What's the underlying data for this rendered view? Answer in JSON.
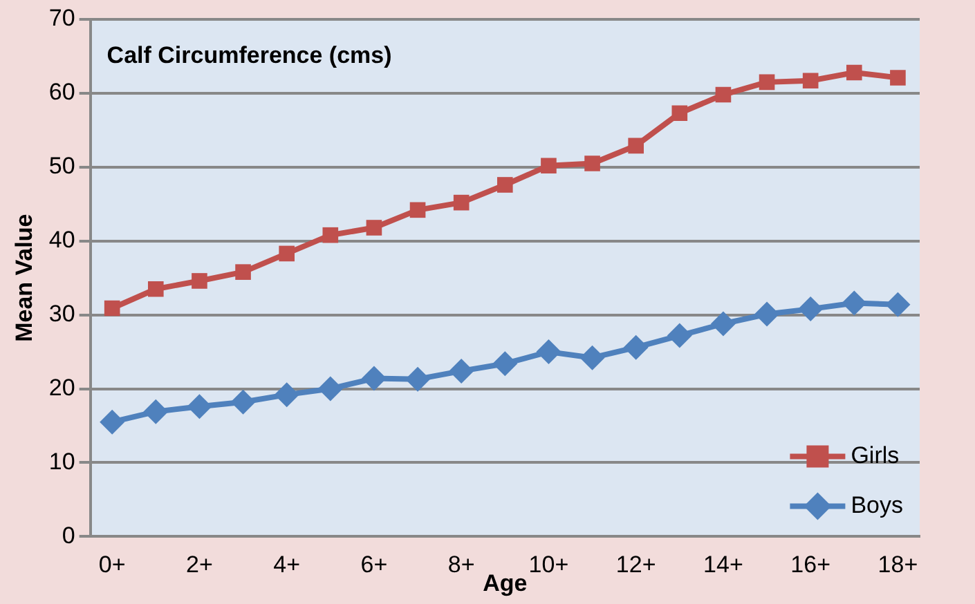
{
  "chart_data": {
    "type": "line",
    "title": "Calf Circumference (cms)",
    "xlabel": "Age",
    "ylabel": "Mean Value",
    "categories": [
      "0+",
      null,
      "2+",
      null,
      "4+",
      null,
      "6+",
      null,
      "8+",
      null,
      "10+",
      null,
      "12+",
      null,
      "14+",
      null,
      "16+",
      null,
      "18+"
    ],
    "series": [
      {
        "name": "Girls",
        "color": "#c0504d",
        "marker": "square",
        "values": [
          30.9,
          33.5,
          34.6,
          35.8,
          38.3,
          40.8,
          41.8,
          44.2,
          45.2,
          47.6,
          50.2,
          50.5,
          52.9,
          57.3,
          59.8,
          61.5,
          61.7,
          62.8,
          62.1
        ]
      },
      {
        "name": "Boys",
        "color": "#4f81bd",
        "marker": "diamond",
        "values": [
          15.5,
          16.9,
          17.6,
          18.2,
          19.2,
          20.0,
          21.4,
          21.3,
          22.4,
          23.4,
          25.0,
          24.2,
          25.6,
          27.2,
          28.8,
          30.1,
          30.8,
          31.6,
          31.4
        ]
      }
    ],
    "ylim": [
      0,
      70
    ],
    "yticks": [
      0,
      10,
      20,
      30,
      40,
      50,
      60,
      70
    ],
    "grid": "y",
    "legend": "bottom right"
  }
}
